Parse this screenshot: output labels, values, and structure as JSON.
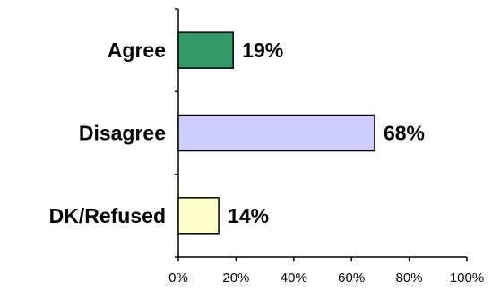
{
  "chart_data": {
    "type": "bar",
    "orientation": "horizontal",
    "categories": [
      "Agree",
      "Disagree",
      "DK/Refused"
    ],
    "values": [
      19,
      68,
      14
    ],
    "value_labels": [
      "19%",
      "68%",
      "14%"
    ],
    "colors": [
      "#339966",
      "#ccccff",
      "#ffffcc"
    ],
    "xlim": [
      0,
      100
    ],
    "xticks": [
      0,
      20,
      40,
      60,
      80,
      100
    ],
    "xtick_labels": [
      "0%",
      "20%",
      "40%",
      "60%",
      "80%",
      "100%"
    ],
    "grid": false,
    "legend": "none"
  }
}
